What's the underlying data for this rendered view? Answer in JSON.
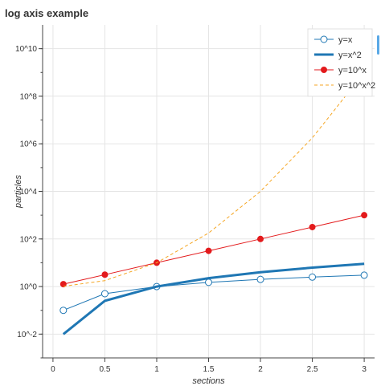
{
  "chart_data": {
    "type": "line",
    "title": "log axis example",
    "xlabel": "sections",
    "ylabel": "particles",
    "x_scale": "linear",
    "y_scale": "log",
    "xlim": [
      -0.1,
      3.1
    ],
    "ylim": [
      0.001,
      100000000000.0
    ],
    "grid": true,
    "legend_position": "top-right",
    "x_ticks": [
      0,
      0.5,
      1,
      1.5,
      2,
      2.5,
      3
    ],
    "x_tick_labels": [
      "0",
      "0.5",
      "1",
      "1.5",
      "2",
      "2.5",
      "3"
    ],
    "y_ticks": [
      0.01,
      1,
      100,
      10000,
      1000000,
      100000000,
      10000000000
    ],
    "y_tick_labels": [
      "10^-2",
      "10^0",
      "10^2",
      "10^4",
      "10^6",
      "10^8",
      "10^10"
    ],
    "x": [
      0.1,
      0.5,
      1.0,
      1.5,
      2.0,
      2.5,
      3.0
    ],
    "series": [
      {
        "name": "y=x",
        "color": "#1f77b4",
        "style": "line-open-circle",
        "values": [
          0.1,
          0.5,
          1.0,
          1.5,
          2.0,
          2.5,
          3.0
        ]
      },
      {
        "name": "y=x^2",
        "color": "#1f77b4",
        "style": "thick-line",
        "values": [
          0.01,
          0.25,
          1.0,
          2.25,
          4.0,
          6.25,
          9.0
        ]
      },
      {
        "name": "y=10^x",
        "color": "#e31a1c",
        "style": "line-filled-circle",
        "values": [
          1.259,
          3.162,
          10.0,
          31.62,
          100.0,
          316.2,
          1000.0
        ]
      },
      {
        "name": "y=10^x^2",
        "color": "#f5a623",
        "style": "dashed",
        "values": [
          1.023,
          1.778,
          10.0,
          177.8,
          10000.0,
          1778279.0,
          1000000000.0
        ]
      }
    ]
  }
}
